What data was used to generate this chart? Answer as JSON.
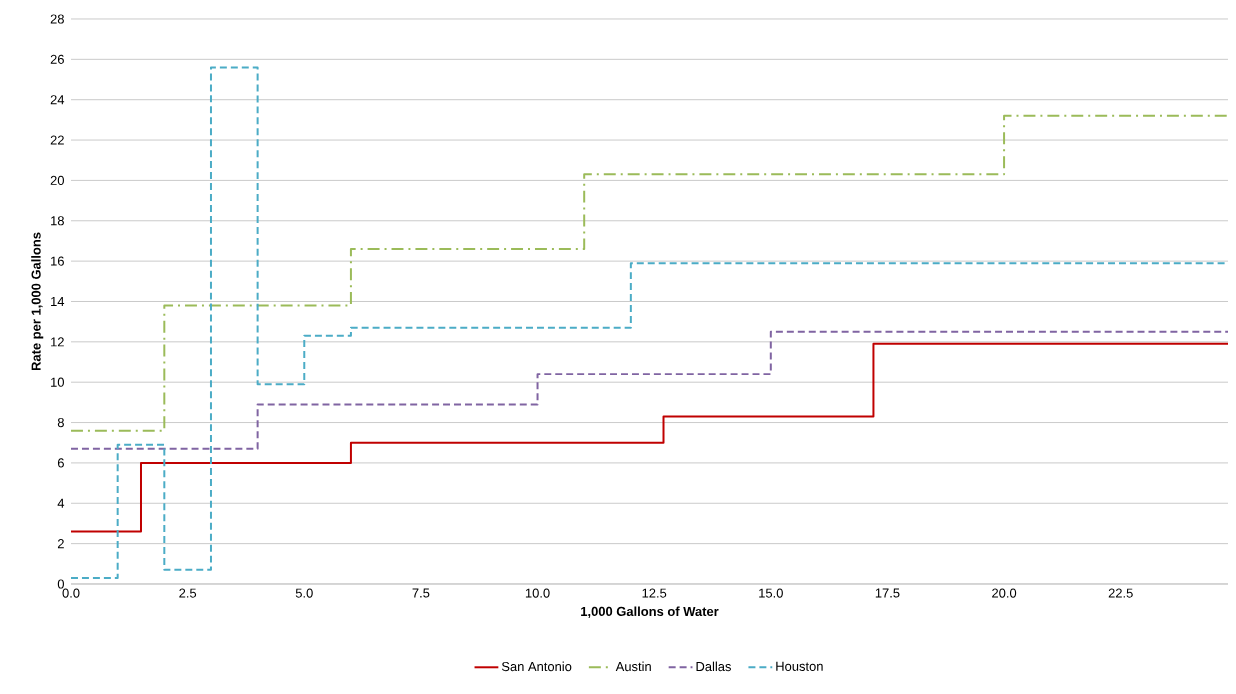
{
  "chart_data": {
    "type": "step",
    "xlabel": "1,000 Gallons of Water",
    "ylabel": "Rate per 1,000 Gallons",
    "xlim": [
      0,
      24.8
    ],
    "ylim": [
      0,
      28
    ],
    "xticks": [
      {
        "value": 0,
        "label": "0.0"
      },
      {
        "value": 2.5,
        "label": "2.5"
      },
      {
        "value": 5,
        "label": "5.0"
      },
      {
        "value": 7.5,
        "label": "7.5"
      },
      {
        "value": 10,
        "label": "10.0"
      },
      {
        "value": 12.5,
        "label": "12.5"
      },
      {
        "value": 15,
        "label": "15.0"
      },
      {
        "value": 17.5,
        "label": "17.5"
      },
      {
        "value": 20,
        "label": "20.0"
      },
      {
        "value": 22.5,
        "label": "22.5"
      }
    ],
    "yticks": [
      0,
      2,
      4,
      6,
      8,
      10,
      12,
      14,
      16,
      18,
      20,
      22,
      24,
      26,
      28
    ],
    "grid": "y",
    "legend": "bottom",
    "series": [
      {
        "name": "San Antonio",
        "color": "#c00000",
        "line_style": "solid",
        "x": [
          0,
          1.5,
          6,
          12.7,
          17.2,
          24.8
        ],
        "values": [
          2.6,
          6.0,
          7.0,
          8.3,
          11.9,
          11.9
        ]
      },
      {
        "name": "Austin",
        "color": "#9bbb59",
        "line_style": "dashdot",
        "x": [
          0,
          2,
          6,
          11,
          20,
          24.8
        ],
        "values": [
          7.6,
          13.8,
          16.6,
          20.3,
          23.2,
          23.2
        ]
      },
      {
        "name": "Dallas",
        "color": "#8064a2",
        "line_style": "dashed",
        "x": [
          0,
          4,
          10,
          15,
          24.8
        ],
        "values": [
          6.7,
          8.9,
          10.4,
          12.5,
          12.5
        ]
      },
      {
        "name": "Houston",
        "color": "#4bacc6",
        "line_style": "dashed",
        "x": [
          0,
          1,
          2,
          3,
          4,
          5,
          6,
          12,
          24.8
        ],
        "values": [
          0.3,
          6.9,
          0.7,
          25.6,
          9.9,
          12.3,
          12.7,
          15.9,
          15.9
        ]
      }
    ]
  }
}
